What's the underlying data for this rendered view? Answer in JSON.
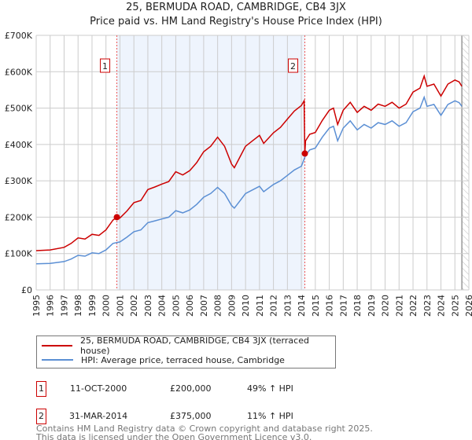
{
  "title": "25, BERMUDA ROAD, CAMBRIDGE, CB4 3JX",
  "subtitle": "Price paid vs. HM Land Registry's House Price Index (HPI)",
  "chart_data": {
    "type": "line",
    "title": "25, BERMUDA ROAD, CAMBRIDGE, CB4 3JX",
    "subtitle": "Price paid vs. HM Land Registry's House Price Index (HPI)",
    "xlim": [
      1995,
      2026
    ],
    "ylim": [
      0,
      700000
    ],
    "yticks": [
      0,
      100000,
      200000,
      300000,
      400000,
      500000,
      600000,
      700000
    ],
    "ytick_labels": [
      "£0",
      "£100K",
      "£200K",
      "£300K",
      "£400K",
      "£500K",
      "£600K",
      "£700K"
    ],
    "xticks": [
      "1995",
      "1996",
      "1997",
      "1998",
      "1999",
      "2000",
      "2001",
      "2002",
      "2003",
      "2004",
      "2005",
      "2006",
      "2007",
      "2008",
      "2009",
      "2010",
      "2011",
      "2012",
      "2013",
      "2014",
      "2015",
      "2016",
      "2017",
      "2018",
      "2019",
      "2020",
      "2021",
      "2022",
      "2023",
      "2024",
      "2025",
      "2026"
    ],
    "grid": true,
    "shaded_range": [
      2000.78,
      2014.25
    ],
    "hatched_from": 2025.5,
    "colors": {
      "property": "#cc0000",
      "hpi": "#5b8fd4",
      "shade": "#eef4fd",
      "grid": "#cccccc"
    },
    "series": [
      {
        "name": "25, BERMUDA ROAD, CAMBRIDGE, CB4 3JX (terraced house)",
        "color": "#cc0000",
        "x": [
          1995,
          1996,
          1997,
          1997.5,
          1998,
          1998.5,
          1999,
          1999.5,
          2000,
          2000.5,
          2000.78,
          2001,
          2001.5,
          2002,
          2002.5,
          2003,
          2003.5,
          2004,
          2004.5,
          2005,
          2005.5,
          2006,
          2006.5,
          2007,
          2007.5,
          2008,
          2008.5,
          2009,
          2009.2,
          2009.7,
          2010,
          2010.5,
          2011,
          2011.3,
          2012,
          2012.5,
          2013,
          2013.5,
          2014,
          2014.2,
          2014.25,
          2014.3,
          2014.6,
          2015,
          2015.5,
          2016,
          2016.3,
          2016.6,
          2017,
          2017.5,
          2018,
          2018.5,
          2019,
          2019.5,
          2020,
          2020.5,
          2021,
          2021.5,
          2022,
          2022.5,
          2022.8,
          2023,
          2023.5,
          2024,
          2024.5,
          2025,
          2025.3,
          2025.5
        ],
        "y": [
          108000,
          110000,
          117000,
          128000,
          143000,
          140000,
          153000,
          150000,
          165000,
          192000,
          200000,
          198000,
          217000,
          240000,
          246000,
          276000,
          283000,
          291000,
          298000,
          325000,
          316000,
          328000,
          350000,
          380000,
          395000,
          420000,
          395000,
          346000,
          336000,
          373000,
          395000,
          410000,
          425000,
          403000,
          432000,
          447000,
          470000,
          492000,
          507000,
          520000,
          375000,
          410000,
          428000,
          433000,
          466000,
          494000,
          500000,
          455000,
          494000,
          516000,
          488000,
          505000,
          494000,
          511000,
          505000,
          516000,
          500000,
          511000,
          544000,
          555000,
          588000,
          560000,
          566000,
          533000,
          566000,
          577000,
          572000,
          560000
        ]
      },
      {
        "name": "HPI: Average price, terraced house, Cambridge",
        "color": "#5b8fd4",
        "x": [
          1995,
          1996,
          1997,
          1997.5,
          1998,
          1998.5,
          1999,
          1999.5,
          2000,
          2000.5,
          2001,
          2001.5,
          2002,
          2002.5,
          2003,
          2003.5,
          2004,
          2004.5,
          2005,
          2005.5,
          2006,
          2006.5,
          2007,
          2007.5,
          2008,
          2008.5,
          2009,
          2009.2,
          2009.7,
          2010,
          2010.5,
          2011,
          2011.3,
          2012,
          2012.5,
          2013,
          2013.5,
          2014,
          2014.3,
          2014.6,
          2015,
          2015.5,
          2016,
          2016.3,
          2016.6,
          2017,
          2017.5,
          2018,
          2018.5,
          2019,
          2019.5,
          2020,
          2020.5,
          2021,
          2021.5,
          2022,
          2022.5,
          2022.8,
          2023,
          2023.5,
          2024,
          2024.5,
          2025,
          2025.3,
          2025.5
        ],
        "y": [
          72000,
          73000,
          78000,
          85000,
          95000,
          93000,
          102000,
          100000,
          110000,
          128000,
          132000,
          145000,
          160000,
          165000,
          185000,
          190000,
          195000,
          200000,
          218000,
          212000,
          220000,
          235000,
          255000,
          265000,
          282000,
          265000,
          232000,
          225000,
          250000,
          265000,
          275000,
          285000,
          270000,
          290000,
          300000,
          315000,
          330000,
          340000,
          370000,
          385000,
          390000,
          420000,
          445000,
          450000,
          410000,
          445000,
          465000,
          440000,
          455000,
          445000,
          460000,
          455000,
          465000,
          450000,
          460000,
          490000,
          500000,
          530000,
          505000,
          510000,
          480000,
          510000,
          520000,
          515000,
          505000
        ]
      }
    ],
    "markers": [
      {
        "label": "1",
        "x": 2000.78,
        "y": 200000
      },
      {
        "label": "2",
        "x": 2014.25,
        "y": 375000
      }
    ]
  },
  "legend": {
    "property": "25, BERMUDA ROAD, CAMBRIDGE, CB4 3JX (terraced house)",
    "hpi": "HPI: Average price, terraced house, Cambridge"
  },
  "transactions": [
    {
      "num": "1",
      "date": "11-OCT-2000",
      "price": "£200,000",
      "hpi": "49% ↑ HPI"
    },
    {
      "num": "2",
      "date": "31-MAR-2014",
      "price": "£375,000",
      "hpi": "11% ↑ HPI"
    }
  ],
  "footer": {
    "line1": "Contains HM Land Registry data © Crown copyright and database right 2025.",
    "line2": "This data is licensed under the Open Government Licence v3.0."
  }
}
